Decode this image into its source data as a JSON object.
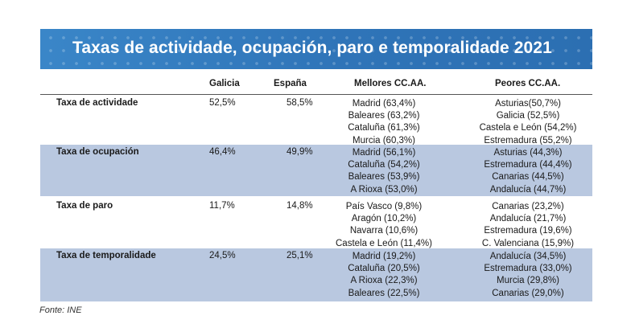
{
  "title": "Taxas de actividade, ocupación, paro e temporalidade 2021",
  "columns": {
    "galicia": "Galicia",
    "espana": "España",
    "best": "Mellores CC.AA.",
    "worst": "Peores CC.AA."
  },
  "rows": [
    {
      "label": "Taxa de actividade",
      "galicia": "52,5%",
      "espana": "58,5%",
      "best": [
        "Madrid (63,4%)",
        "Baleares (63,2%)",
        "Cataluña (61,3%)",
        "Murcia (60,3%)"
      ],
      "worst": [
        "Asturias(50,7%)",
        "Galicia (52,5%)",
        "Castela e León (54,2%)",
        "Estremadura (55,2%)"
      ]
    },
    {
      "label": "Taxa de ocupación",
      "galicia": "46,4%",
      "espana": "49,9%",
      "best": [
        "Madrid (56,1%)",
        "Cataluña (54,2%)",
        "Baleares (53,9%)",
        "A Rioxa (53,0%)"
      ],
      "worst": [
        "Asturias (44,3%)",
        "Estremadura (44,4%)",
        "Canarias (44,5%)",
        "Andalucía (44,7%)"
      ]
    },
    {
      "label": "Taxa de paro",
      "galicia": "11,7%",
      "espana": "14,8%",
      "best": [
        "País Vasco (9,8%)",
        "Aragón (10,2%)",
        "Navarra (10,6%)",
        "Castela e León (11,4%)"
      ],
      "worst": [
        "Canarias (23,2%)",
        "Andalucía (21,7%)",
        "Estremadura (19,6%)",
        "C. Valenciana (15,9%)"
      ]
    },
    {
      "label": "Taxa de temporalidade",
      "galicia": "24,5%",
      "espana": "25,1%",
      "best": [
        "Madrid (19,2%)",
        "Cataluña (20,5%)",
        "A Rioxa (22,3%)",
        "Baleares (22,5%)"
      ],
      "worst": [
        "Andalucía (34,5%)",
        "Estremadura (33,0%)",
        "Murcia (29,8%)",
        "Canarias (29,0%)"
      ]
    }
  ],
  "source": "Fonte: INE",
  "colors": {
    "banner": "#2f78bd",
    "row_shade": "#b9c8e0"
  }
}
